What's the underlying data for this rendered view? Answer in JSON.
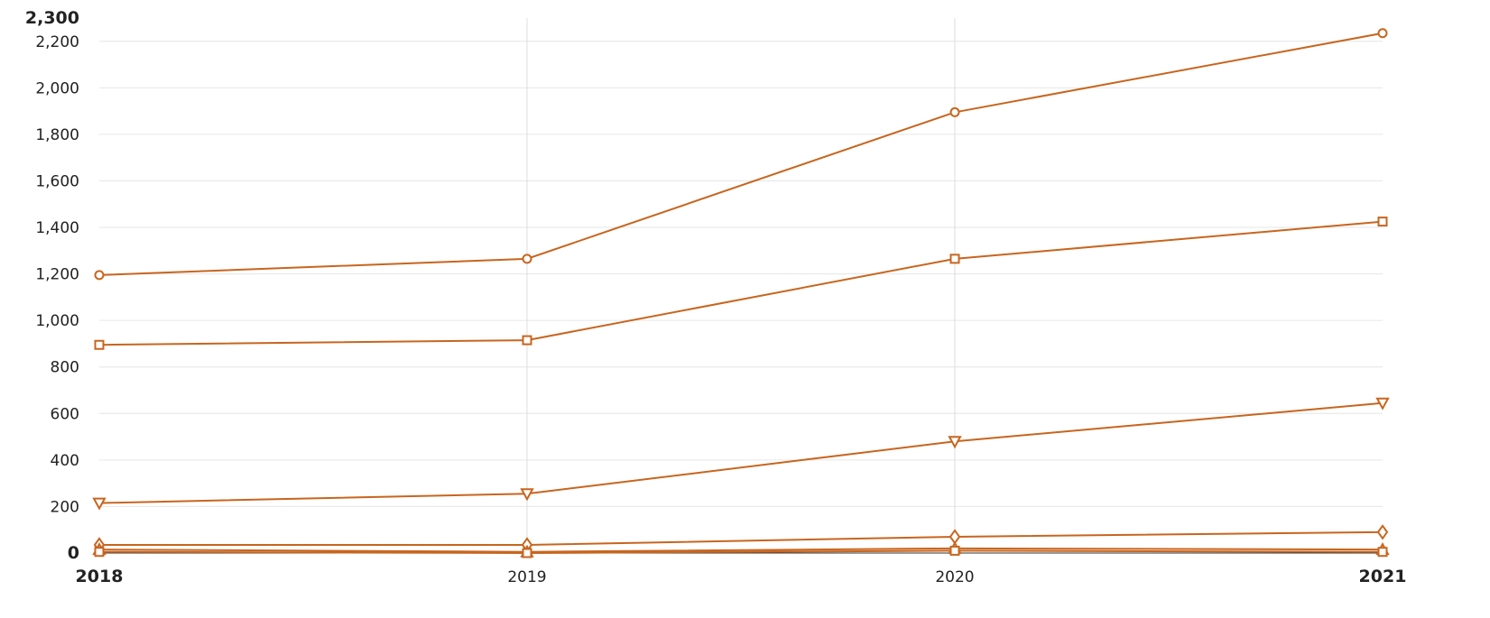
{
  "chart_data": {
    "type": "line",
    "title": "",
    "xlabel": "",
    "ylabel": "",
    "categories": [
      "2018",
      "2019",
      "2020",
      "2021"
    ],
    "bold_x_ticks": [
      "2018",
      "2021"
    ],
    "ylim": [
      0,
      2300
    ],
    "y_ticks": [
      0,
      200,
      400,
      600,
      800,
      1000,
      1200,
      1400,
      1600,
      1800,
      2000,
      2200,
      2300
    ],
    "y_tick_labels": [
      "0",
      "200",
      "400",
      "600",
      "800",
      "1,000",
      "1,200",
      "1,400",
      "1,600",
      "1,800",
      "2,000",
      "2,200",
      "2,300"
    ],
    "bold_y_ticks": [
      "0",
      "2,300"
    ],
    "grid": true,
    "legend": "none",
    "line_color": "#c8651e",
    "series": [
      {
        "marker": "circle",
        "values": [
          1195,
          1265,
          1895,
          2235
        ]
      },
      {
        "marker": "square",
        "values": [
          895,
          915,
          1265,
          1425
        ]
      },
      {
        "marker": "triangle-down",
        "values": [
          215,
          255,
          480,
          645
        ]
      },
      {
        "marker": "diamond",
        "values": [
          35,
          35,
          70,
          90
        ]
      },
      {
        "marker": "triangle-up",
        "values": [
          15,
          5,
          20,
          15
        ]
      },
      {
        "marker": "square",
        "values": [
          5,
          0,
          10,
          5
        ]
      }
    ]
  }
}
